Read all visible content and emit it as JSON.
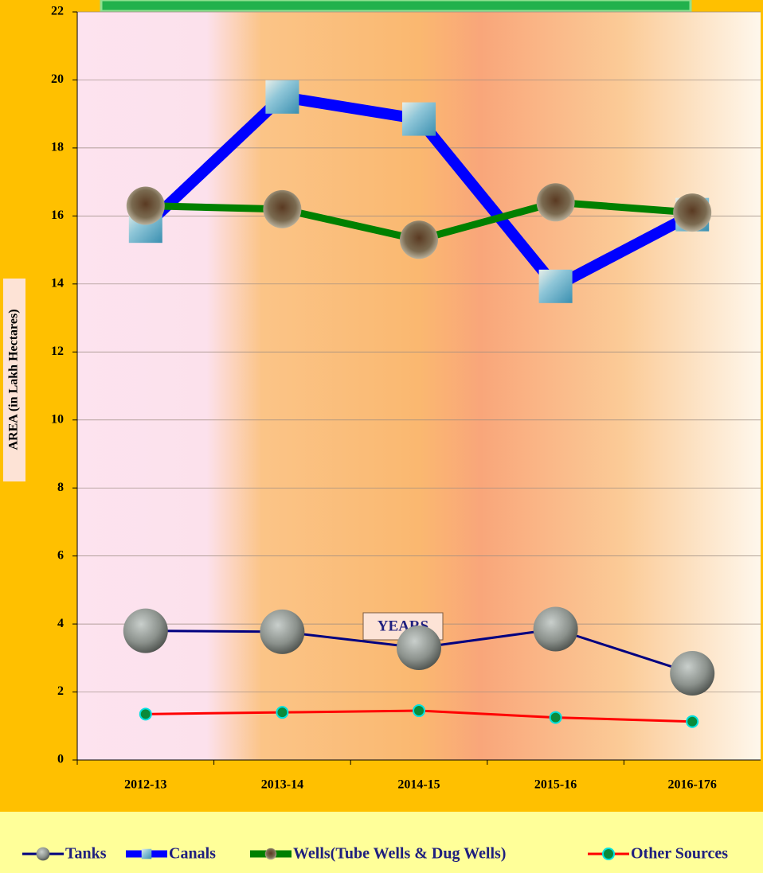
{
  "chart_data": {
    "type": "line",
    "x_label": "YEARS",
    "y_label": "AREA (in Lakh Hectares)",
    "categories": [
      "2012-13",
      "2013-14",
      "2014-15",
      "2015-16",
      "2016-176"
    ],
    "series": [
      {
        "name": "Tanks",
        "color": "#000080",
        "values": [
          3.8,
          3.77,
          3.3,
          3.85,
          2.55
        ]
      },
      {
        "name": "Canals",
        "color": "#0000FF",
        "values": [
          15.7,
          19.5,
          18.85,
          13.93,
          16.04
        ]
      },
      {
        "name": "Wells(Tube Wells & Dug Wells)",
        "color": "#008000",
        "values": [
          16.3,
          16.2,
          15.3,
          16.4,
          16.1
        ]
      },
      {
        "name": "Other Sources",
        "color": "#FF0000",
        "values": [
          1.35,
          1.4,
          1.45,
          1.25,
          1.13
        ]
      }
    ],
    "ylim": [
      0,
      22
    ],
    "yticks": [
      0,
      2,
      4,
      6,
      8,
      10,
      12,
      14,
      16,
      18,
      20,
      22
    ],
    "grid": true,
    "legend": "bottom"
  }
}
